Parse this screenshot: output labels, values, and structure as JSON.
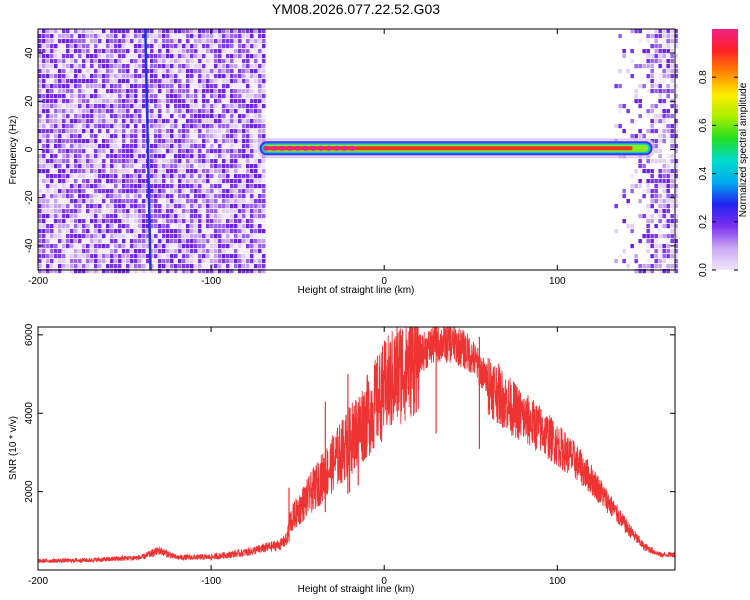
{
  "title": "YM08.2026.077.22.52.G03",
  "chart_data": [
    {
      "type": "heatmap",
      "xlabel": "Height of straight line (km)",
      "ylabel": "Frequency (Hz)",
      "xlim": [
        -200,
        168
      ],
      "ylim": [
        -50,
        50
      ],
      "xticks": [
        -200,
        -100,
        0,
        100
      ],
      "yticks": [
        -40,
        -20,
        0,
        20,
        40
      ],
      "colorbar": {
        "label": "Normalized spectral amplitude",
        "range": [
          0,
          1
        ],
        "ticks": [
          "0.0",
          "0.2",
          "0.4",
          "0.6",
          "0.8"
        ],
        "colors": [
          "#f0e6fa",
          "#c9a8f2",
          "#7a2ff0",
          "#2222ee",
          "#00aaee",
          "#00ddcc",
          "#22dd22",
          "#aaee00",
          "#ffee00",
          "#ff8800",
          "#ff2222",
          "#ee2288"
        ]
      },
      "noise_regions_km": [
        [
          -200,
          -70
        ],
        [
          133,
          168
        ]
      ],
      "tone": {
        "x_start": -72,
        "x_end": 155,
        "frequency_hz": 0.5
      },
      "streak": {
        "x_top": -138,
        "x_bottom": -135
      }
    },
    {
      "type": "line",
      "xlabel": "Height of straight line (km)",
      "ylabel": "SNR (10 * v/v)",
      "xlim": [
        -200,
        168
      ],
      "ylim": [
        0,
        6200
      ],
      "xticks": [
        -200,
        -100,
        0,
        100
      ],
      "yticks": [
        2000,
        4000,
        6000
      ],
      "color": "#ee3333",
      "envelope": {
        "x": [
          -200,
          -170,
          -140,
          -130,
          -120,
          -100,
          -80,
          -60,
          -56,
          -55,
          -50,
          -40,
          -30,
          -20,
          -10,
          0,
          10,
          20,
          30,
          40,
          50,
          60,
          70,
          80,
          90,
          100,
          110,
          120,
          130,
          140,
          150,
          160,
          168
        ],
        "y": [
          230,
          250,
          320,
          500,
          320,
          330,
          450,
          650,
          800,
          1200,
          1500,
          2100,
          2700,
          3300,
          3900,
          4600,
          5100,
          5500,
          5800,
          5800,
          5500,
          4800,
          4300,
          3900,
          3600,
          3200,
          2800,
          2300,
          1700,
          1100,
          600,
          380,
          400
        ]
      },
      "spikes": [
        {
          "x": -55,
          "y": 2100
        },
        {
          "x": -34,
          "y": 4300
        },
        {
          "x": -21,
          "y": 5000
        },
        {
          "x": -20,
          "y": 3500
        },
        {
          "x": -15,
          "y": 4200
        },
        {
          "x": 30,
          "y": 6000
        },
        {
          "x": 55,
          "y": 5950
        }
      ]
    }
  ]
}
